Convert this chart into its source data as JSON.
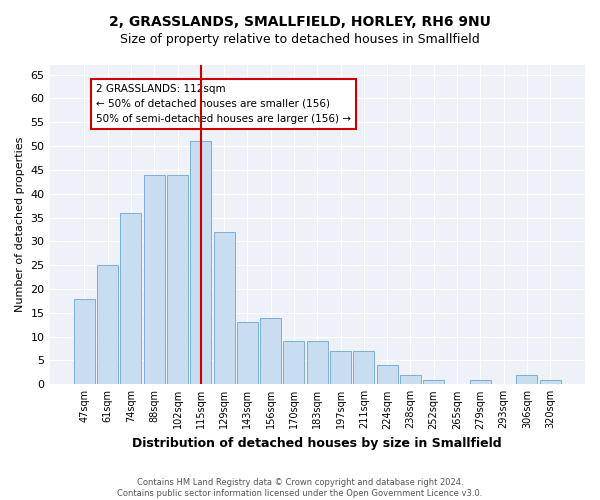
{
  "title": "2, GRASSLANDS, SMALLFIELD, HORLEY, RH6 9NU",
  "subtitle": "Size of property relative to detached houses in Smallfield",
  "xlabel": "Distribution of detached houses by size in Smallfield",
  "ylabel": "Number of detached properties",
  "bar_labels": [
    "47sqm",
    "61sqm",
    "74sqm",
    "88sqm",
    "102sqm",
    "115sqm",
    "129sqm",
    "143sqm",
    "156sqm",
    "170sqm",
    "183sqm",
    "197sqm",
    "211sqm",
    "224sqm",
    "238sqm",
    "252sqm",
    "265sqm",
    "279sqm",
    "293sqm",
    "306sqm",
    "320sqm"
  ],
  "bar_values": [
    18,
    25,
    36,
    44,
    44,
    51,
    32,
    13,
    14,
    9,
    9,
    7,
    7,
    4,
    2,
    1,
    0,
    1,
    0,
    2,
    1
  ],
  "bar_color": "#c9ddf0",
  "bar_edgecolor": "#7bafd4",
  "vline_index": 5,
  "vline_color": "#cc0000",
  "annotation_text": "2 GRASSLANDS: 112sqm\n← 50% of detached houses are smaller (156)\n50% of semi-detached houses are larger (156) →",
  "annotation_box_edgecolor": "#cc0000",
  "annotation_box_facecolor": "#ffffff",
  "ylim": [
    0,
    67
  ],
  "yticks": [
    0,
    5,
    10,
    15,
    20,
    25,
    30,
    35,
    40,
    45,
    50,
    55,
    60,
    65
  ],
  "footer_line1": "Contains HM Land Registry data © Crown copyright and database right 2024.",
  "footer_line2": "Contains public sector information licensed under the Open Government Licence v3.0.",
  "bg_color": "#ffffff",
  "plot_bg_color": "#eef2f8",
  "grid_color": "#ffffff",
  "title_fontsize": 10,
  "subtitle_fontsize": 9,
  "xlabel_fontsize": 9,
  "ylabel_fontsize": 8,
  "tick_fontsize": 8,
  "xtick_fontsize": 7
}
